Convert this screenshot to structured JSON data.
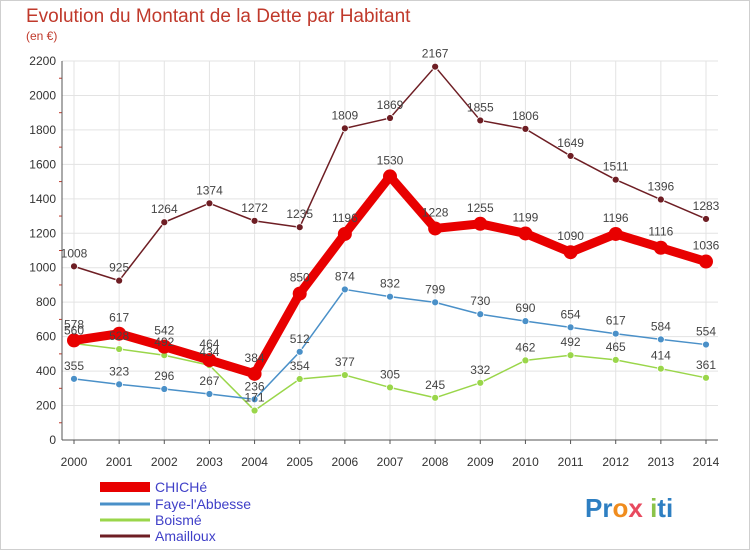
{
  "chart_data": {
    "type": "line",
    "title": "Evolution du Montant de la Dette par Habitant",
    "subtitle": "(en €)",
    "x": [
      "2000",
      "2001",
      "2002",
      "2003",
      "2004",
      "2005",
      "2006",
      "2007",
      "2008",
      "2009",
      "2010",
      "2011",
      "2012",
      "2013",
      "2014"
    ],
    "ylim": [
      0,
      2200
    ],
    "yticks": [
      0,
      200,
      400,
      600,
      800,
      1000,
      1200,
      1400,
      1600,
      1800,
      2000,
      2200
    ],
    "grid": true,
    "legend_placement": "bottom-left",
    "series": [
      {
        "name": "CHICHé",
        "color": "#e80000",
        "values": [
          578,
          617,
          542,
          464,
          384,
          850,
          1196,
          1530,
          1228,
          1255,
          1199,
          1090,
          1196,
          1116,
          1036
        ]
      },
      {
        "name": "Faye-l'Abbesse",
        "color": "#4a90c8",
        "values": [
          355,
          323,
          296,
          267,
          236,
          512,
          874,
          832,
          799,
          730,
          690,
          654,
          617,
          584,
          554
        ]
      },
      {
        "name": "Boismé",
        "color": "#9ad64a",
        "values": [
          560,
          528,
          492,
          434,
          171,
          354,
          377,
          305,
          245,
          332,
          462,
          492,
          465,
          414,
          361
        ]
      },
      {
        "name": "Amailloux",
        "color": "#6e1e24",
        "values": [
          1008,
          925,
          1264,
          1374,
          1272,
          1235,
          1809,
          1869,
          2167,
          1855,
          1806,
          1649,
          1511,
          1396,
          1283
        ]
      }
    ],
    "brand": "Prox iti"
  }
}
